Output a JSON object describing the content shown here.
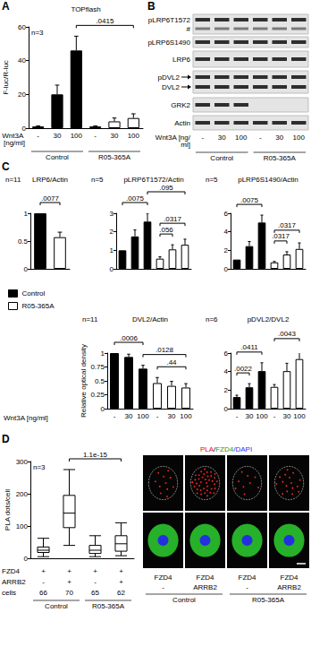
{
  "chart_data": [
    {
      "type": "bar",
      "letter": "A",
      "title": "TOPflash",
      "ylabel": "F-luc/R-luc",
      "n": "n=3",
      "xlabel": "Wnt3A [ng/ml]",
      "groups": [
        "Control",
        "R05-365A"
      ],
      "categories": [
        "-",
        "30",
        "100",
        "-",
        "30",
        "100"
      ],
      "series": [
        {
          "name": "Control",
          "color": "#000000",
          "values": [
            1,
            20,
            46,
            null,
            null,
            null
          ],
          "errors": [
            0.3,
            5.5,
            8.5,
            null,
            null,
            null
          ]
        },
        {
          "name": "R05-365A",
          "color": "#ffffff",
          "values": [
            null,
            null,
            null,
            1,
            4,
            6
          ],
          "errors": [
            null,
            null,
            null,
            0.3,
            2,
            2.5
          ]
        }
      ],
      "ylim": [
        0,
        60
      ],
      "yticks": [
        0,
        20,
        40,
        60
      ],
      "brackets": [
        {
          "between": [
            2,
            5
          ],
          "label": ".0415"
        }
      ]
    },
    {
      "type": "bar",
      "letter": "C",
      "title": "LRP6/Actin",
      "n": "n=11",
      "legend": "bottom",
      "categories": [
        null,
        null
      ],
      "series": [
        {
          "name": "Control",
          "color": "#000000",
          "values": [
            1,
            null
          ],
          "errors": [
            null,
            null
          ]
        },
        {
          "name": "R05-365A",
          "color": "#ffffff",
          "values": [
            null,
            0.57
          ],
          "errors": [
            null,
            0.09
          ]
        }
      ],
      "ylim": [
        0,
        1
      ],
      "yticks": [
        0,
        0.5,
        1
      ],
      "brackets": [
        {
          "between": [
            0,
            1
          ],
          "label": ".0077"
        }
      ]
    },
    {
      "type": "bar",
      "title": "pLRP6T1572/Actin",
      "n": "n=5",
      "categories": [
        null,
        null,
        null,
        null,
        null,
        null
      ],
      "series": [
        {
          "name": "Control",
          "color": "#000000",
          "values": [
            1,
            1.75,
            2.55,
            null,
            null,
            null
          ],
          "errors": [
            null,
            0.35,
            0.45,
            null,
            null,
            null
          ]
        },
        {
          "name": "R05-365A",
          "color": "#ffffff",
          "values": [
            null,
            null,
            null,
            0.55,
            1.05,
            1.3
          ],
          "errors": [
            null,
            null,
            null,
            0.1,
            0.25,
            0.3
          ]
        }
      ],
      "ylim": [
        0,
        3
      ],
      "yticks": [
        0,
        1,
        2,
        3
      ],
      "brackets": [
        {
          "between": [
            3,
            4
          ],
          "label": ".056"
        },
        {
          "between": [
            3,
            5
          ],
          "label": ".0317"
        },
        {
          "between": [
            0,
            2
          ],
          "label": ".0075"
        },
        {
          "between": [
            2,
            5
          ],
          "label": ".095"
        }
      ]
    },
    {
      "type": "bar",
      "title": "pLRP6S1490/Actin",
      "n": "n=5",
      "categories": [
        null,
        null,
        null,
        null,
        null,
        null
      ],
      "series": [
        {
          "name": "Control",
          "color": "#000000",
          "values": [
            1,
            2.45,
            5.0,
            null,
            null,
            null
          ],
          "errors": [
            null,
            0.5,
            0.8,
            null,
            null,
            null
          ]
        },
        {
          "name": "R05-365A",
          "color": "#ffffff",
          "values": [
            null,
            null,
            null,
            0.7,
            1.55,
            2.15
          ],
          "errors": [
            null,
            null,
            null,
            0.1,
            0.3,
            0.65
          ]
        }
      ],
      "ylim": [
        0,
        6
      ],
      "yticks": [
        0,
        2,
        4,
        6
      ],
      "brackets": [
        {
          "between": [
            3,
            4
          ],
          "label": ".0317"
        },
        {
          "between": [
            3,
            5
          ],
          "label": ".0317"
        },
        {
          "between": [
            0,
            2
          ],
          "label": ".0075"
        }
      ]
    },
    {
      "type": "bar",
      "title": "DVL2/Actin",
      "n": "n=11",
      "ylabel": "Relative optical density",
      "xlabel": "Wnt3A [ng/ml]",
      "categories": [
        "-",
        "30",
        "100",
        "-",
        "30",
        "100"
      ],
      "series": [
        {
          "name": "Control",
          "color": "#000000",
          "values": [
            1,
            0.93,
            0.72,
            null,
            null,
            null
          ],
          "errors": [
            null,
            0.05,
            0.06,
            null,
            null,
            null
          ]
        },
        {
          "name": "R05-365A",
          "color": "#ffffff",
          "values": [
            null,
            null,
            null,
            0.46,
            0.41,
            0.38
          ],
          "errors": [
            null,
            null,
            null,
            0.1,
            0.08,
            0.07
          ]
        }
      ],
      "ylim": [
        0,
        1
      ],
      "yticks": [
        0,
        0.25,
        0.5,
        0.75,
        1
      ],
      "brackets": [
        {
          "between": [
            3,
            5
          ],
          "label": ".44"
        },
        {
          "between": [
            2,
            5
          ],
          "label": ".0128"
        },
        {
          "between": [
            0,
            2
          ],
          "label": ".0006"
        }
      ]
    },
    {
      "type": "bar",
      "title": "pDVL2/DVL2",
      "n": "n=6",
      "categories": [
        "-",
        "30",
        "100",
        "-",
        "30",
        "100"
      ],
      "series": [
        {
          "name": "Control",
          "color": "#000000",
          "values": [
            1.25,
            2.3,
            4.05,
            null,
            null,
            null
          ],
          "errors": [
            0.2,
            0.4,
            0.9,
            null,
            null,
            null
          ]
        },
        {
          "name": "R05-365A",
          "color": "#ffffff",
          "values": [
            null,
            null,
            null,
            2.35,
            4.05,
            5.35
          ],
          "errors": [
            null,
            null,
            null,
            0.25,
            0.85,
            1.05
          ]
        }
      ],
      "ylim": [
        0,
        6
      ],
      "yticks": [
        0,
        2,
        4,
        6
      ],
      "brackets": [
        {
          "between": [
            0,
            1
          ],
          "label": ".0022"
        },
        {
          "between": [
            0,
            2
          ],
          "label": ".0411"
        },
        {
          "between": [
            3,
            5
          ],
          "label": ".0043"
        }
      ]
    },
    {
      "type": "boxplot",
      "letter": "D",
      "ylabel": "PLA dots/cell",
      "n": "n=3",
      "color": "#ffffff",
      "categories": [
        null,
        null,
        null,
        null
      ],
      "values": [
        [
          5,
          18,
          25,
          35,
          62
        ],
        [
          40,
          95,
          140,
          195,
          275
        ],
        [
          5,
          15,
          25,
          40,
          70
        ],
        [
          8,
          22,
          45,
          70,
          110
        ]
      ],
      "ylim": [
        0,
        300
      ],
      "yticks": [
        0,
        100,
        200,
        300
      ],
      "brackets": [
        {
          "between": [
            1,
            3
          ],
          "label": "1.1e-15"
        }
      ],
      "table": [
        {
          "label": "FZD4",
          "cells": [
            "+",
            "+",
            "+",
            "+"
          ]
        },
        {
          "label": "ARRB2",
          "cells": [
            "-",
            "+",
            "-",
            "+"
          ]
        },
        {
          "label": "cells",
          "cells": [
            66,
            70,
            65,
            62
          ]
        }
      ],
      "groups": [
        "Control",
        "R05-365A"
      ]
    }
  ],
  "blot": {
    "letter": "B",
    "rows": [
      "pLRP6T1572",
      "#",
      "pLRP6S1490",
      "LRP6",
      "pDVL2",
      "DVL2",
      "GRK2",
      "Actin"
    ],
    "lanes": [
      "-",
      "30",
      "100",
      "-",
      "30",
      "100"
    ],
    "xlabel": "Wnt3A [ng/ml]",
    "groups": [
      "Control",
      "R05-365A"
    ]
  },
  "micrographs": {
    "header_parts": [
      "PLA",
      "/",
      "FZD4",
      "/DAPI"
    ],
    "colors": [
      "#e3001b",
      "#000000",
      "#1b9e1b",
      "#2633ff"
    ],
    "columns": [
      [
        "FZD4",
        "-"
      ],
      [
        "FZD4",
        "ARRB2"
      ],
      [
        "FZD4",
        "-"
      ],
      [
        "FZD4",
        "ARRB2"
      ]
    ],
    "groups": [
      "Control",
      "R05-365A"
    ]
  }
}
